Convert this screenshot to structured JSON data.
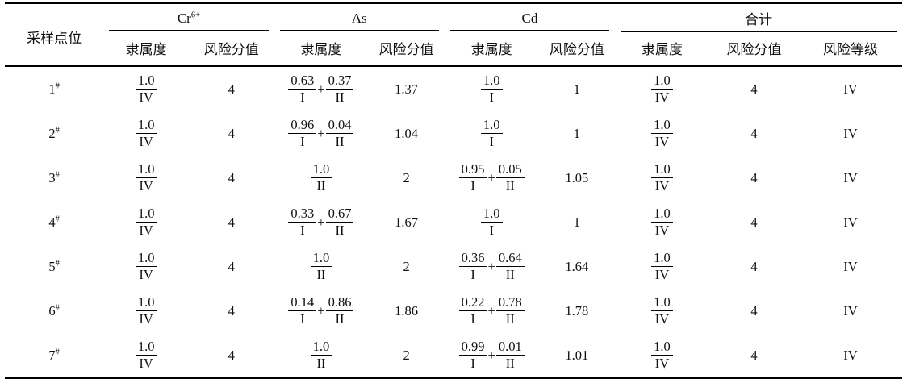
{
  "table": {
    "corner_header": "采样点位",
    "groups": [
      {
        "base": "Cr",
        "sup": "6+"
      },
      {
        "base": "As",
        "sup": ""
      },
      {
        "base": "Cd",
        "sup": ""
      },
      {
        "base": "合计",
        "sup": ""
      }
    ],
    "subheaders": [
      "隶属度",
      "风险分值",
      "隶属度",
      "风险分值",
      "隶属度",
      "风险分值",
      "隶属度",
      "风险分值",
      "风险等级"
    ],
    "rows": [
      {
        "point": "1",
        "marker": "#",
        "cr": {
          "fracs": [
            {
              "num": "1.0",
              "den": "IV"
            }
          ],
          "score": "4"
        },
        "as": {
          "fracs": [
            {
              "num": "0.63",
              "den": "I"
            },
            {
              "num": "0.37",
              "den": "II"
            }
          ],
          "score": "1.37"
        },
        "cd": {
          "fracs": [
            {
              "num": "1.0",
              "den": "I"
            }
          ],
          "score": "1"
        },
        "total": {
          "fracs": [
            {
              "num": "1.0",
              "den": "IV"
            }
          ],
          "score": "4",
          "grade": "IV"
        }
      },
      {
        "point": "2",
        "marker": "#",
        "cr": {
          "fracs": [
            {
              "num": "1.0",
              "den": "IV"
            }
          ],
          "score": "4"
        },
        "as": {
          "fracs": [
            {
              "num": "0.96",
              "den": "I"
            },
            {
              "num": "0.04",
              "den": "II"
            }
          ],
          "score": "1.04"
        },
        "cd": {
          "fracs": [
            {
              "num": "1.0",
              "den": "I"
            }
          ],
          "score": "1"
        },
        "total": {
          "fracs": [
            {
              "num": "1.0",
              "den": "IV"
            }
          ],
          "score": "4",
          "grade": "IV"
        }
      },
      {
        "point": "3",
        "marker": "#",
        "cr": {
          "fracs": [
            {
              "num": "1.0",
              "den": "IV"
            }
          ],
          "score": "4"
        },
        "as": {
          "fracs": [
            {
              "num": "1.0",
              "den": "II"
            }
          ],
          "score": "2"
        },
        "cd": {
          "fracs": [
            {
              "num": "0.95",
              "den": "I"
            },
            {
              "num": "0.05",
              "den": "II"
            }
          ],
          "score": "1.05"
        },
        "total": {
          "fracs": [
            {
              "num": "1.0",
              "den": "IV"
            }
          ],
          "score": "4",
          "grade": "IV"
        }
      },
      {
        "point": "4",
        "marker": "#",
        "cr": {
          "fracs": [
            {
              "num": "1.0",
              "den": "IV"
            }
          ],
          "score": "4"
        },
        "as": {
          "fracs": [
            {
              "num": "0.33",
              "den": "I"
            },
            {
              "num": "0.67",
              "den": "II"
            }
          ],
          "score": "1.67"
        },
        "cd": {
          "fracs": [
            {
              "num": "1.0",
              "den": "I"
            }
          ],
          "score": "1"
        },
        "total": {
          "fracs": [
            {
              "num": "1.0",
              "den": "IV"
            }
          ],
          "score": "4",
          "grade": "IV"
        }
      },
      {
        "point": "5",
        "marker": "#",
        "cr": {
          "fracs": [
            {
              "num": "1.0",
              "den": "IV"
            }
          ],
          "score": "4"
        },
        "as": {
          "fracs": [
            {
              "num": "1.0",
              "den": "II"
            }
          ],
          "score": "2"
        },
        "cd": {
          "fracs": [
            {
              "num": "0.36",
              "den": "I"
            },
            {
              "num": "0.64",
              "den": "II"
            }
          ],
          "score": "1.64"
        },
        "total": {
          "fracs": [
            {
              "num": "1.0",
              "den": "IV"
            }
          ],
          "score": "4",
          "grade": "IV"
        }
      },
      {
        "point": "6",
        "marker": "#",
        "cr": {
          "fracs": [
            {
              "num": "1.0",
              "den": "IV"
            }
          ],
          "score": "4"
        },
        "as": {
          "fracs": [
            {
              "num": "0.14",
              "den": "I"
            },
            {
              "num": "0.86",
              "den": "II"
            }
          ],
          "score": "1.86"
        },
        "cd": {
          "fracs": [
            {
              "num": "0.22",
              "den": "I"
            },
            {
              "num": "0.78",
              "den": "II"
            }
          ],
          "score": "1.78"
        },
        "total": {
          "fracs": [
            {
              "num": "1.0",
              "den": "IV"
            }
          ],
          "score": "4",
          "grade": "IV"
        }
      },
      {
        "point": "7",
        "marker": "#",
        "cr": {
          "fracs": [
            {
              "num": "1.0",
              "den": "IV"
            }
          ],
          "score": "4"
        },
        "as": {
          "fracs": [
            {
              "num": "1.0",
              "den": "II"
            }
          ],
          "score": "2"
        },
        "cd": {
          "fracs": [
            {
              "num": "0.99",
              "den": "I"
            },
            {
              "num": "0.01",
              "den": "II"
            }
          ],
          "score": "1.01"
        },
        "total": {
          "fracs": [
            {
              "num": "1.0",
              "den": "IV"
            }
          ],
          "score": "4",
          "grade": "IV"
        }
      }
    ]
  }
}
